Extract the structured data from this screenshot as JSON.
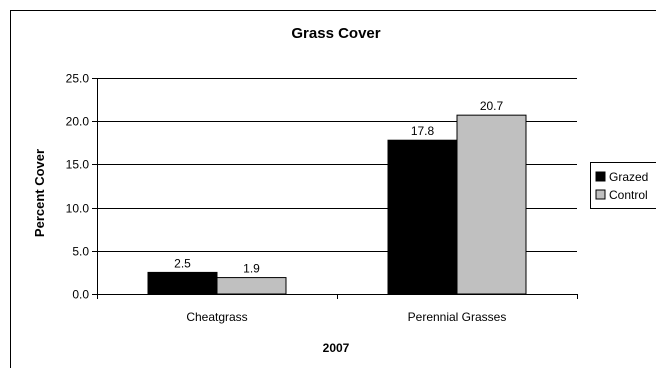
{
  "chart_data": {
    "type": "bar",
    "title": "Grass Cover",
    "xlabel": "2007",
    "ylabel": "Percent Cover",
    "categories": [
      "Cheatgrass",
      "Perennial Grasses"
    ],
    "series": [
      {
        "name": "Grazed",
        "values": [
          2.5,
          17.8
        ],
        "labels": [
          "2.5",
          "17.8"
        ],
        "color": "#000000"
      },
      {
        "name": "Control",
        "values": [
          1.9,
          20.7
        ],
        "labels": [
          "1.9",
          "20.7"
        ],
        "color": "#c0c0c0"
      }
    ],
    "ylim": [
      0,
      25
    ],
    "yticks": [
      "0.0",
      "5.0",
      "10.0",
      "15.0",
      "20.0",
      "25.0"
    ],
    "grid": true,
    "legend": "right"
  }
}
